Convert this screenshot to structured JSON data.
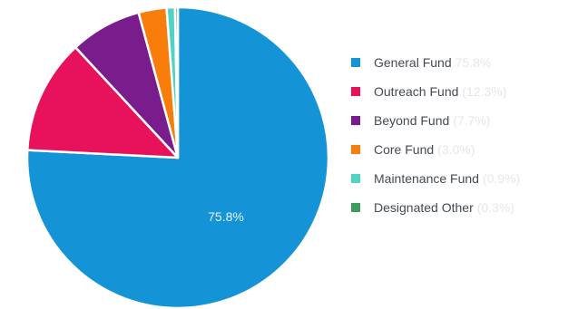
{
  "chart_data": {
    "type": "pie",
    "slices": [
      {
        "name": "General Fund",
        "value": 75.8,
        "pct_label": "75.8%",
        "color": "#1494d6"
      },
      {
        "name": "Outreach Fund",
        "value": 12.3,
        "pct_label": "(12.3%)",
        "color": "#e8115b"
      },
      {
        "name": "Beyond Fund",
        "value": 7.7,
        "pct_label": "(7.7%)",
        "color": "#7a1d8c"
      },
      {
        "name": "Core Fund",
        "value": 3.0,
        "pct_label": "(3.0%)",
        "color": "#f97d0b"
      },
      {
        "name": "Maintenance Fund",
        "value": 0.9,
        "pct_label": "(0.9%)",
        "color": "#52d2c2"
      },
      {
        "name": "Designated Other",
        "value": 0.3,
        "pct_label": "(0.3%)",
        "color": "#3d9b5c"
      }
    ],
    "legend_position": "right"
  }
}
